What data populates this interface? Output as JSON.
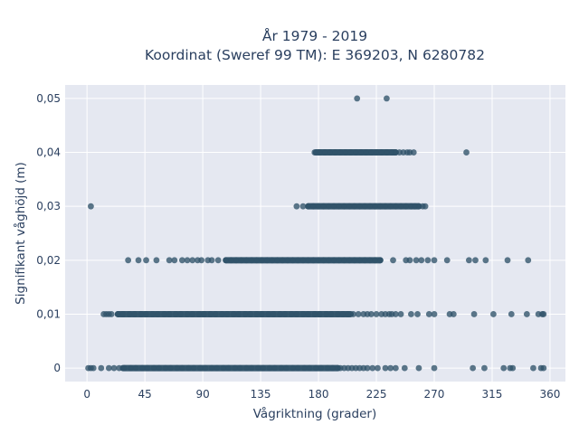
{
  "chart_data": {
    "type": "scatter",
    "title_line1": "År 1979 - 2019",
    "title_line2": "Koordinat (Sweref 99 TM): E 369203, N 6280782",
    "xlabel": "Vågriktning (grader)",
    "ylabel": "Signifikant våghöjd (m)",
    "xlim": [
      -17,
      372
    ],
    "ylim": [
      -0.0025,
      0.0525
    ],
    "xticks": [
      0,
      45,
      90,
      135,
      180,
      225,
      270,
      315,
      360
    ],
    "xtick_labels": [
      "0",
      "45",
      "90",
      "135",
      "180",
      "225",
      "270",
      "315",
      "360"
    ],
    "yticks": [
      0,
      0.01,
      0.02,
      0.03,
      0.04,
      0.05
    ],
    "ytick_labels": [
      "0",
      "0,01",
      "0,02",
      "0,03",
      "0,04",
      "0,05"
    ],
    "grid": true,
    "colors": {
      "plot_background": "#e5e8f1",
      "grid": "#ffffff",
      "marker": "#2f5269",
      "text": "#2a3f5f"
    },
    "series": [
      {
        "y": 0,
        "dense_range": [
          28,
          195
        ],
        "x": [
          1,
          3,
          5,
          11,
          17,
          21,
          25,
          29,
          34,
          38,
          43,
          47,
          52,
          56,
          61,
          65,
          70,
          74,
          79,
          83,
          88,
          92,
          97,
          101,
          106,
          110,
          115,
          119,
          124,
          128,
          133,
          137,
          142,
          146,
          151,
          155,
          160,
          164,
          169,
          173,
          178,
          182,
          187,
          191,
          195,
          197,
          200,
          203,
          206,
          209,
          212,
          215,
          218,
          222,
          226,
          232,
          236,
          240,
          247,
          258,
          270,
          300,
          309,
          324,
          329,
          331,
          347,
          353,
          355
        ]
      },
      {
        "y": 0.01,
        "dense_range": [
          24,
          205
        ],
        "x": [
          13,
          15,
          17,
          19,
          24,
          28,
          33,
          37,
          42,
          46,
          51,
          55,
          60,
          64,
          69,
          73,
          78,
          82,
          87,
          91,
          96,
          100,
          105,
          109,
          114,
          118,
          123,
          127,
          132,
          136,
          141,
          145,
          150,
          154,
          159,
          163,
          168,
          172,
          177,
          181,
          186,
          190,
          195,
          199,
          203,
          207,
          211,
          215,
          218,
          221,
          225,
          229,
          232,
          235,
          237,
          240,
          244,
          252,
          257,
          266,
          270,
          282,
          285,
          301,
          316,
          330,
          342,
          351,
          354,
          355
        ]
      },
      {
        "y": 0.02,
        "dense_range": [
          108,
          228
        ],
        "x": [
          32,
          40,
          46,
          54,
          64,
          68,
          74,
          78,
          82,
          86,
          89,
          94,
          97,
          102,
          108,
          112,
          116,
          120,
          124,
          128,
          132,
          136,
          140,
          144,
          148,
          152,
          156,
          160,
          164,
          168,
          172,
          176,
          180,
          184,
          188,
          192,
          196,
          200,
          204,
          208,
          212,
          216,
          220,
          224,
          228,
          238,
          248,
          251,
          256,
          260,
          265,
          270,
          280,
          297,
          302,
          310,
          327,
          343
        ]
      },
      {
        "y": 0.03,
        "dense_range": [
          172,
          258
        ],
        "x": [
          3,
          163,
          168,
          172,
          176,
          180,
          184,
          188,
          192,
          196,
          200,
          204,
          208,
          212,
          216,
          220,
          224,
          228,
          232,
          236,
          240,
          244,
          248,
          252,
          255,
          258,
          261,
          263
        ]
      },
      {
        "y": 0.04,
        "dense_range": [
          178,
          240
        ],
        "x": [
          177,
          181,
          185,
          189,
          193,
          197,
          201,
          205,
          209,
          213,
          217,
          221,
          225,
          229,
          233,
          237,
          240,
          243,
          246,
          249,
          251,
          254,
          295
        ]
      },
      {
        "y": 0.05,
        "dense_range": [
          210,
          210
        ],
        "x": [
          210,
          233
        ]
      }
    ]
  }
}
